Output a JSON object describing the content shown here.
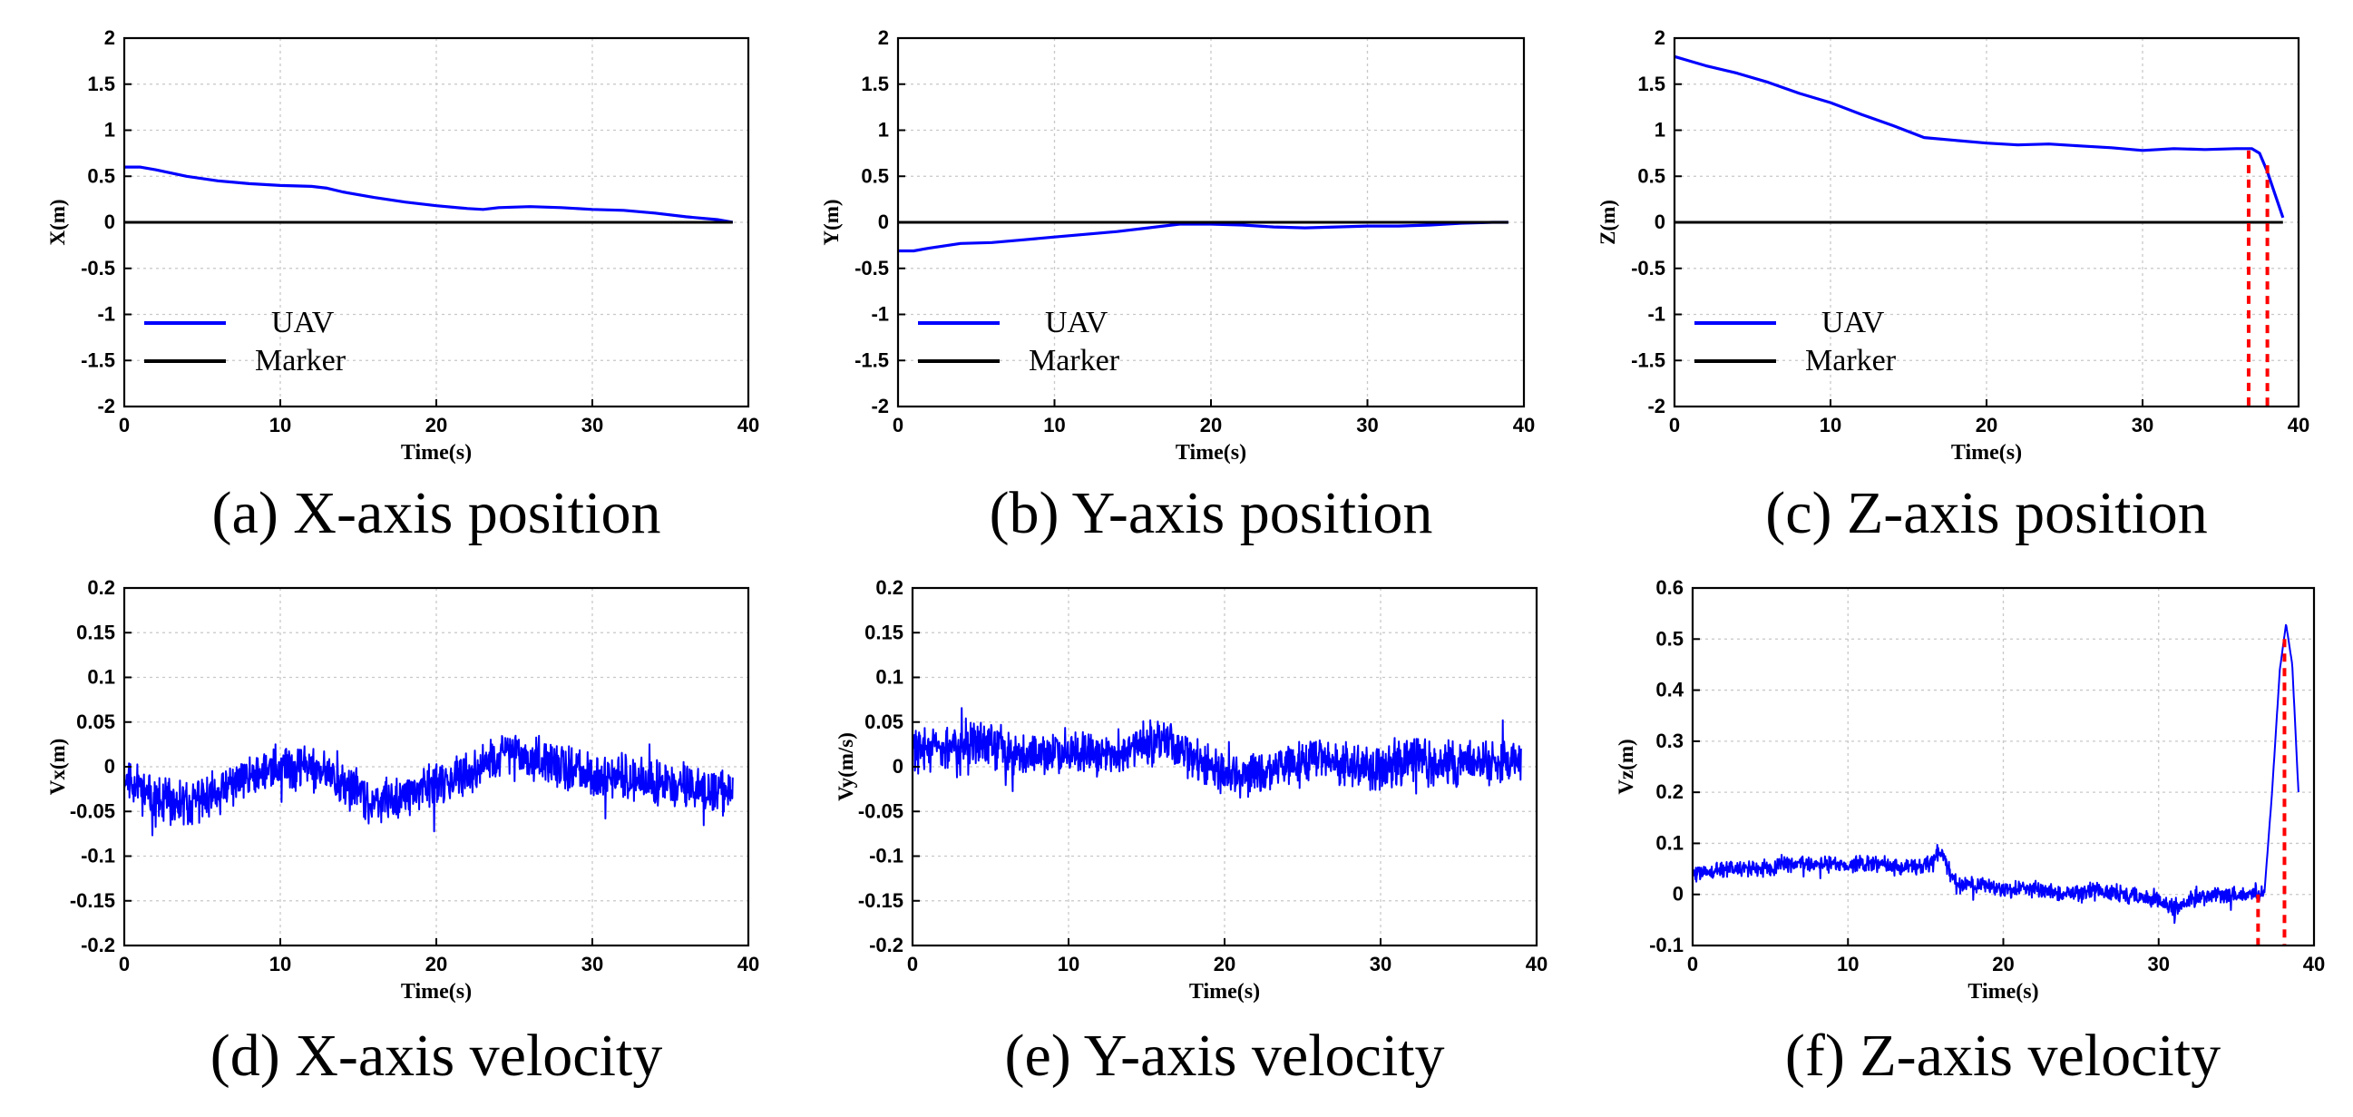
{
  "chart_data": [
    {
      "id": "a",
      "type": "line",
      "caption": "(a) X-axis position",
      "xlabel": "Time(s)",
      "ylabel": "X(m)",
      "xlim": [
        0,
        40
      ],
      "ylim": [
        -2,
        2
      ],
      "xticks": [
        0,
        10,
        20,
        30,
        40
      ],
      "yticks": [
        -2,
        -1.5,
        -1,
        -0.5,
        0,
        0.5,
        1,
        1.5,
        2
      ],
      "grid": true,
      "legend_position": "bottom-left",
      "series": [
        {
          "name": "UAV",
          "color": "#0000ff",
          "x": [
            0,
            1,
            2,
            4,
            6,
            8,
            10,
            12,
            13,
            14,
            16,
            18,
            20,
            22,
            23,
            24,
            26,
            28,
            30,
            32,
            34,
            36,
            38,
            39
          ],
          "y": [
            0.6,
            0.6,
            0.57,
            0.5,
            0.45,
            0.42,
            0.4,
            0.39,
            0.37,
            0.33,
            0.27,
            0.22,
            0.18,
            0.15,
            0.14,
            0.16,
            0.17,
            0.16,
            0.14,
            0.13,
            0.1,
            0.06,
            0.03,
            0.0
          ]
        },
        {
          "name": "Marker",
          "color": "#000000",
          "x": [
            0,
            39
          ],
          "y": [
            0,
            0
          ]
        }
      ]
    },
    {
      "id": "b",
      "type": "line",
      "caption": "(b) Y-axis position",
      "xlabel": "Time(s)",
      "ylabel": "Y(m)",
      "xlim": [
        0,
        40
      ],
      "ylim": [
        -2,
        2
      ],
      "xticks": [
        0,
        10,
        20,
        30,
        40
      ],
      "yticks": [
        -2,
        -1.5,
        -1,
        -0.5,
        0,
        0.5,
        1,
        1.5,
        2
      ],
      "grid": true,
      "legend_position": "bottom-left",
      "series": [
        {
          "name": "UAV",
          "color": "#0000ff",
          "x": [
            0,
            1,
            2,
            4,
            6,
            8,
            10,
            12,
            14,
            16,
            18,
            20,
            22,
            24,
            26,
            28,
            30,
            32,
            34,
            36,
            38,
            39
          ],
          "y": [
            -0.31,
            -0.31,
            -0.28,
            -0.23,
            -0.22,
            -0.19,
            -0.16,
            -0.13,
            -0.1,
            -0.06,
            -0.02,
            -0.02,
            -0.03,
            -0.05,
            -0.06,
            -0.05,
            -0.04,
            -0.04,
            -0.03,
            -0.01,
            0.0,
            0.0
          ]
        },
        {
          "name": "Marker",
          "color": "#000000",
          "x": [
            0,
            39
          ],
          "y": [
            0,
            0
          ]
        }
      ]
    },
    {
      "id": "c",
      "type": "line",
      "caption": "(c) Z-axis position",
      "xlabel": "Time(s)",
      "ylabel": "Z(m)",
      "xlim": [
        0,
        40
      ],
      "ylim": [
        -2,
        2
      ],
      "xticks": [
        0,
        10,
        20,
        30,
        40
      ],
      "yticks": [
        -2,
        -1.5,
        -1,
        -0.5,
        0,
        0.5,
        1,
        1.5,
        2
      ],
      "grid": true,
      "legend_position": "bottom-left",
      "series": [
        {
          "name": "UAV",
          "color": "#0000ff",
          "x": [
            0,
            1,
            2,
            4,
            6,
            8,
            10,
            12,
            14,
            16,
            18,
            20,
            22,
            24,
            26,
            28,
            30,
            32,
            34,
            36,
            37,
            37.5,
            38,
            38.5,
            39
          ],
          "y": [
            1.8,
            1.75,
            1.7,
            1.62,
            1.52,
            1.4,
            1.3,
            1.17,
            1.05,
            0.92,
            0.89,
            0.86,
            0.84,
            0.85,
            0.83,
            0.81,
            0.78,
            0.8,
            0.79,
            0.8,
            0.8,
            0.75,
            0.55,
            0.3,
            0.05
          ]
        },
        {
          "name": "Marker",
          "color": "#000000",
          "x": [
            0,
            39
          ],
          "y": [
            0,
            0
          ]
        }
      ],
      "markers": [
        {
          "x": 36.8,
          "y": 0.78,
          "color": "#ff0000"
        },
        {
          "x": 38.0,
          "y": 0.62,
          "color": "#ff0000"
        }
      ]
    },
    {
      "id": "d",
      "type": "line",
      "caption": "(d) X-axis velocity",
      "xlabel": "Time(s)",
      "ylabel": "Vx(m)",
      "xlim": [
        0,
        40
      ],
      "ylim": [
        -0.2,
        0.2
      ],
      "xticks": [
        0,
        10,
        20,
        30,
        40
      ],
      "yticks": [
        -0.2,
        -0.15,
        -0.1,
        -0.05,
        0,
        0.05,
        0.1,
        0.15,
        0.2
      ],
      "grid": true,
      "noise": 0.018,
      "seed": 11,
      "series": [
        {
          "name": "Vx",
          "color": "#0000ff",
          "x": [
            0,
            2,
            4,
            6,
            8,
            10,
            12,
            14,
            16,
            18,
            20,
            22,
            24,
            25,
            26,
            28,
            30,
            32,
            34,
            36,
            38,
            39
          ],
          "y": [
            -0.01,
            -0.04,
            -0.04,
            -0.03,
            -0.01,
            0.0,
            0.0,
            -0.02,
            -0.04,
            -0.03,
            -0.02,
            -0.01,
            0.01,
            0.02,
            0.01,
            0.0,
            -0.01,
            -0.01,
            -0.02,
            -0.02,
            -0.03,
            -0.03
          ]
        }
      ]
    },
    {
      "id": "e",
      "type": "line",
      "caption": "(e) Y-axis velocity",
      "xlabel": "Time(s)",
      "ylabel": "Vy(m/s)",
      "xlim": [
        0,
        40
      ],
      "ylim": [
        -0.2,
        0.2
      ],
      "xticks": [
        0,
        10,
        20,
        30,
        40
      ],
      "yticks": [
        -0.2,
        -0.15,
        -0.1,
        -0.05,
        0,
        0.05,
        0.1,
        0.15,
        0.2
      ],
      "grid": true,
      "noise": 0.018,
      "seed": 29,
      "series": [
        {
          "name": "Vy",
          "color": "#0000ff",
          "x": [
            0,
            2,
            4,
            6,
            8,
            10,
            12,
            14,
            16,
            18,
            20,
            22,
            24,
            26,
            28,
            30,
            32,
            34,
            36,
            38,
            39
          ],
          "y": [
            0.02,
            0.02,
            0.03,
            0.02,
            0.01,
            0.02,
            0.01,
            0.02,
            0.03,
            0.01,
            -0.01,
            -0.01,
            0.0,
            0.01,
            0.0,
            0.0,
            0.01,
            0.0,
            0.01,
            0.0,
            0.01
          ]
        }
      ]
    },
    {
      "id": "f",
      "type": "line",
      "caption": "(f) Z-axis velocity",
      "xlabel": "Time(s)",
      "ylabel": "Vz(m)",
      "xlim": [
        0,
        40
      ],
      "ylim": [
        -0.1,
        0.6
      ],
      "xticks": [
        0,
        10,
        20,
        30,
        40
      ],
      "yticks": [
        -0.1,
        0,
        0.1,
        0.2,
        0.3,
        0.4,
        0.5,
        0.6
      ],
      "grid": true,
      "noise": 0.012,
      "seed": 47,
      "noise_until": 36.8,
      "series": [
        {
          "name": "Vz",
          "color": "#0000ff",
          "x": [
            0,
            2,
            4,
            6,
            8,
            10,
            12,
            14,
            15,
            16,
            17,
            18,
            20,
            22,
            24,
            26,
            28,
            30,
            31,
            32,
            34,
            36,
            36.8,
            37.3,
            37.8,
            38.2,
            38.6,
            39
          ],
          "y": [
            0.04,
            0.05,
            0.05,
            0.06,
            0.06,
            0.06,
            0.06,
            0.05,
            0.06,
            0.08,
            0.02,
            0.02,
            0.01,
            0.01,
            0.0,
            0.01,
            0.0,
            -0.01,
            -0.03,
            -0.01,
            0.0,
            0.0,
            0.0,
            0.2,
            0.44,
            0.53,
            0.45,
            0.2
          ]
        }
      ],
      "markers": [
        {
          "x": 36.4,
          "y": 0.0,
          "color": "#ff0000"
        },
        {
          "x": 38.1,
          "y": 0.5,
          "color": "#ff0000"
        }
      ]
    }
  ]
}
